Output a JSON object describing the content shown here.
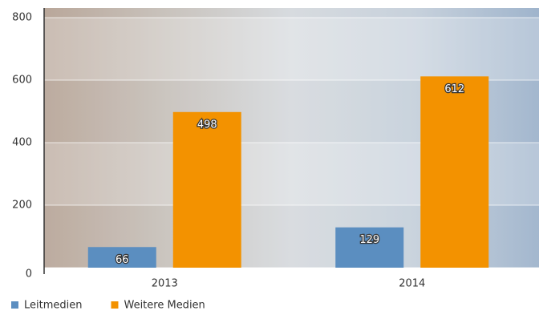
{
  "chart_data": {
    "type": "bar",
    "categories": [
      "2013",
      "2014"
    ],
    "series": [
      {
        "name": "Leitmedien",
        "color": "#5b8ec0",
        "values": [
          66,
          129
        ]
      },
      {
        "name": "Weitere Medien",
        "color": "#f39200",
        "values": [
          498,
          612
        ]
      }
    ],
    "ylim": [
      0,
      800
    ],
    "yticks": [
      0,
      200,
      400,
      600,
      800
    ],
    "grid": true,
    "legend": "bottom-left"
  }
}
